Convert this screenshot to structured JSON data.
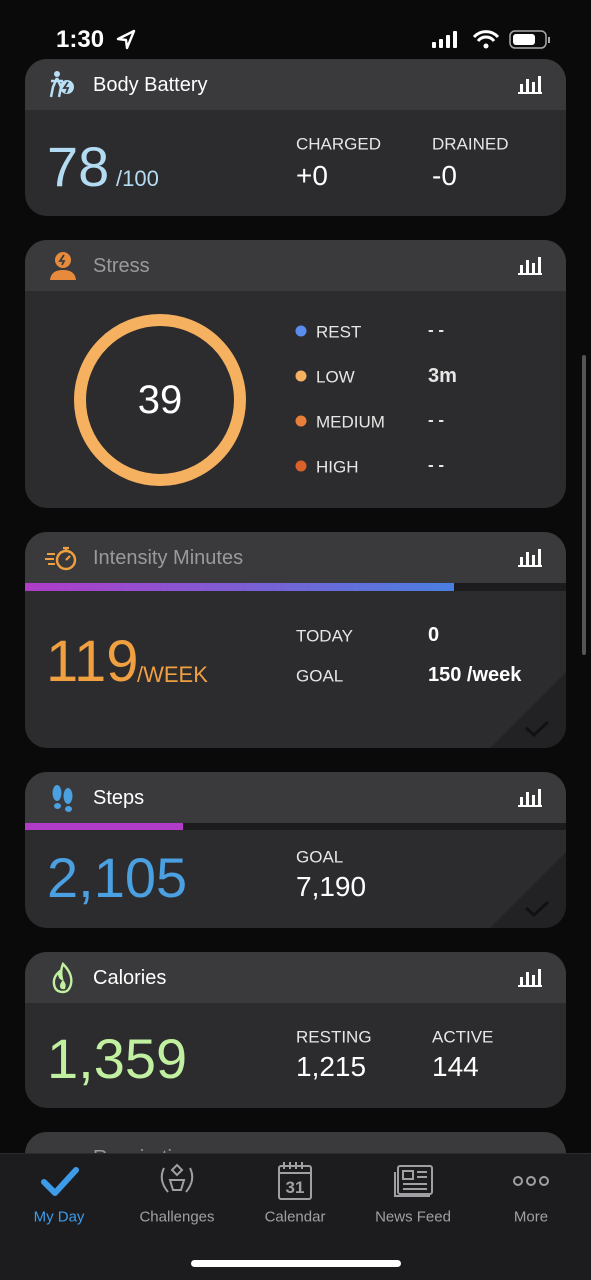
{
  "status_bar": {
    "time": "1:30"
  },
  "cards": [
    {
      "title": "Body Battery",
      "value": "78",
      "unit": "/100",
      "stats": [
        {
          "label": "CHARGED",
          "value": "+0"
        },
        {
          "label": "DRAINED",
          "value": "-0"
        }
      ]
    },
    {
      "title": "Stress",
      "value": "39",
      "legend": [
        {
          "label": "REST",
          "value": "- -"
        },
        {
          "label": "LOW",
          "value": "3m"
        },
        {
          "label": "MEDIUM",
          "value": "- -"
        },
        {
          "label": "HIGH",
          "value": "- -"
        }
      ]
    },
    {
      "title": "Intensity Minutes",
      "value": "119",
      "unit": "/WEEK",
      "stats": [
        {
          "label": "TODAY",
          "value": "0"
        },
        {
          "label": "GOAL",
          "value": "150 /week"
        }
      ]
    },
    {
      "title": "Steps",
      "value": "2,105",
      "stats": [
        {
          "label": "GOAL",
          "value": "7,190"
        }
      ]
    },
    {
      "title": "Calories",
      "value": "1,359",
      "stats": [
        {
          "label": "RESTING",
          "value": "1,215"
        },
        {
          "label": "ACTIVE",
          "value": "144"
        }
      ]
    },
    {
      "title": "Respiration"
    }
  ],
  "tab_bar": {
    "tabs": [
      "My Day",
      "Challenges",
      "Calendar",
      "News Feed",
      "More"
    ],
    "calendar_icon_day": "31"
  }
}
